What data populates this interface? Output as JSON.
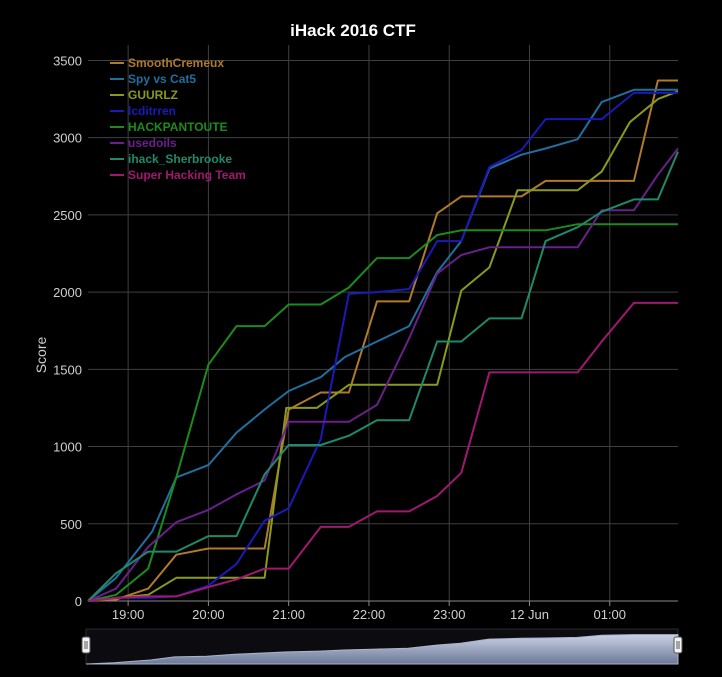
{
  "chart_data": {
    "type": "line",
    "title": "iHack 2016 CTF",
    "xlabel": "",
    "ylabel": "Score",
    "ylim": [
      0,
      3600
    ],
    "y_ticks": [
      0,
      500,
      1000,
      1500,
      2000,
      2500,
      3000,
      3500
    ],
    "x_range_hours": [
      18.5,
      25.85
    ],
    "x_ticks": [
      {
        "t": 19,
        "label": "19:00"
      },
      {
        "t": 20,
        "label": "20:00"
      },
      {
        "t": 21,
        "label": "21:00"
      },
      {
        "t": 22,
        "label": "22:00"
      },
      {
        "t": 23,
        "label": "23:00"
      },
      {
        "t": 24,
        "label": "12 Jun"
      },
      {
        "t": 25,
        "label": "01:00"
      }
    ],
    "grid": true,
    "legend_position": "top-left",
    "series": [
      {
        "name": "SmoothCremeux",
        "color": "#b07a2a",
        "points": [
          [
            18.5,
            0
          ],
          [
            18.85,
            10
          ],
          [
            19.25,
            80
          ],
          [
            19.6,
            300
          ],
          [
            20.0,
            340
          ],
          [
            20.7,
            340
          ],
          [
            21.0,
            1240
          ],
          [
            21.4,
            1350
          ],
          [
            21.75,
            1350
          ],
          [
            22.1,
            1940
          ],
          [
            22.5,
            1940
          ],
          [
            22.85,
            2510
          ],
          [
            23.15,
            2620
          ],
          [
            23.5,
            2620
          ],
          [
            23.9,
            2620
          ],
          [
            24.2,
            2720
          ],
          [
            24.6,
            2720
          ],
          [
            25.3,
            2720
          ],
          [
            25.6,
            3370
          ],
          [
            25.85,
            3370
          ]
        ]
      },
      {
        "name": "Spy vs Cat5",
        "color": "#1f6fa0",
        "points": [
          [
            18.5,
            0
          ],
          [
            18.85,
            150
          ],
          [
            19.3,
            450
          ],
          [
            19.6,
            800
          ],
          [
            20.0,
            880
          ],
          [
            20.35,
            1090
          ],
          [
            20.7,
            1240
          ],
          [
            21.0,
            1360
          ],
          [
            21.4,
            1450
          ],
          [
            21.7,
            1580
          ],
          [
            22.1,
            1680
          ],
          [
            22.5,
            1780
          ],
          [
            22.85,
            2130
          ],
          [
            23.15,
            2330
          ],
          [
            23.5,
            2800
          ],
          [
            23.9,
            2890
          ],
          [
            24.2,
            2930
          ],
          [
            24.6,
            2990
          ],
          [
            24.9,
            3230
          ],
          [
            25.3,
            3310
          ],
          [
            25.85,
            3310
          ]
        ]
      },
      {
        "name": "GUURLZ",
        "color": "#8a9a1c",
        "points": [
          [
            18.5,
            0
          ],
          [
            18.85,
            20
          ],
          [
            19.25,
            40
          ],
          [
            19.6,
            150
          ],
          [
            20.0,
            150
          ],
          [
            20.35,
            150
          ],
          [
            20.7,
            150
          ],
          [
            20.97,
            1250
          ],
          [
            21.35,
            1250
          ],
          [
            21.75,
            1400
          ],
          [
            22.1,
            1400
          ],
          [
            22.5,
            1400
          ],
          [
            22.85,
            1400
          ],
          [
            23.15,
            2010
          ],
          [
            23.5,
            2160
          ],
          [
            23.85,
            2660
          ],
          [
            24.2,
            2660
          ],
          [
            24.6,
            2660
          ],
          [
            24.9,
            2780
          ],
          [
            25.25,
            3100
          ],
          [
            25.6,
            3250
          ],
          [
            25.85,
            3300
          ]
        ]
      },
      {
        "name": "lcditrren",
        "color": "#1a1ab8",
        "points": [
          [
            18.5,
            0
          ],
          [
            18.85,
            20
          ],
          [
            19.25,
            20
          ],
          [
            19.6,
            30
          ],
          [
            20.0,
            100
          ],
          [
            20.35,
            240
          ],
          [
            20.7,
            520
          ],
          [
            21.0,
            600
          ],
          [
            21.4,
            1050
          ],
          [
            21.75,
            1990
          ],
          [
            22.1,
            2000
          ],
          [
            22.5,
            2020
          ],
          [
            22.85,
            2330
          ],
          [
            23.15,
            2330
          ],
          [
            23.5,
            2810
          ],
          [
            23.9,
            2920
          ],
          [
            24.2,
            3120
          ],
          [
            24.6,
            3120
          ],
          [
            24.9,
            3120
          ],
          [
            25.3,
            3290
          ],
          [
            25.85,
            3290
          ]
        ]
      },
      {
        "name": "HACKPANTOUTE",
        "color": "#1b8c1b",
        "points": [
          [
            18.5,
            0
          ],
          [
            18.85,
            40
          ],
          [
            19.25,
            210
          ],
          [
            19.6,
            800
          ],
          [
            20.0,
            1530
          ],
          [
            20.35,
            1780
          ],
          [
            20.7,
            1780
          ],
          [
            21.0,
            1920
          ],
          [
            21.4,
            1920
          ],
          [
            21.75,
            2030
          ],
          [
            22.1,
            2220
          ],
          [
            22.5,
            2220
          ],
          [
            22.85,
            2370
          ],
          [
            23.15,
            2400
          ],
          [
            23.5,
            2400
          ],
          [
            23.9,
            2400
          ],
          [
            24.2,
            2400
          ],
          [
            24.6,
            2440
          ],
          [
            24.9,
            2440
          ],
          [
            25.3,
            2440
          ],
          [
            25.85,
            2440
          ]
        ]
      },
      {
        "name": "usedoils",
        "color": "#6a1f8c",
        "points": [
          [
            18.5,
            0
          ],
          [
            18.85,
            80
          ],
          [
            19.25,
            350
          ],
          [
            19.6,
            510
          ],
          [
            20.0,
            590
          ],
          [
            20.35,
            690
          ],
          [
            20.7,
            780
          ],
          [
            21.0,
            1160
          ],
          [
            21.4,
            1160
          ],
          [
            21.75,
            1160
          ],
          [
            22.1,
            1270
          ],
          [
            22.5,
            1700
          ],
          [
            22.85,
            2120
          ],
          [
            23.15,
            2240
          ],
          [
            23.5,
            2290
          ],
          [
            23.9,
            2290
          ],
          [
            24.2,
            2290
          ],
          [
            24.6,
            2290
          ],
          [
            24.9,
            2530
          ],
          [
            25.3,
            2530
          ],
          [
            25.6,
            2760
          ],
          [
            25.85,
            2930
          ]
        ]
      },
      {
        "name": "ihack_Sherbrooke",
        "color": "#1f8a6a",
        "points": [
          [
            18.5,
            0
          ],
          [
            18.85,
            180
          ],
          [
            19.25,
            320
          ],
          [
            19.6,
            320
          ],
          [
            20.0,
            420
          ],
          [
            20.35,
            420
          ],
          [
            20.7,
            820
          ],
          [
            21.0,
            1010
          ],
          [
            21.4,
            1010
          ],
          [
            21.75,
            1070
          ],
          [
            22.1,
            1170
          ],
          [
            22.5,
            1170
          ],
          [
            22.85,
            1680
          ],
          [
            23.15,
            1680
          ],
          [
            23.5,
            1830
          ],
          [
            23.9,
            1830
          ],
          [
            24.2,
            2330
          ],
          [
            24.6,
            2420
          ],
          [
            24.9,
            2520
          ],
          [
            25.3,
            2600
          ],
          [
            25.6,
            2600
          ],
          [
            25.85,
            2910
          ]
        ]
      },
      {
        "name": "Super Hacking Team",
        "color": "#a01870",
        "points": [
          [
            18.5,
            0
          ],
          [
            18.85,
            20
          ],
          [
            19.25,
            30
          ],
          [
            19.6,
            30
          ],
          [
            20.0,
            90
          ],
          [
            20.35,
            140
          ],
          [
            20.7,
            210
          ],
          [
            21.0,
            210
          ],
          [
            21.4,
            480
          ],
          [
            21.75,
            480
          ],
          [
            22.1,
            580
          ],
          [
            22.5,
            580
          ],
          [
            22.85,
            680
          ],
          [
            23.15,
            830
          ],
          [
            23.5,
            1480
          ],
          [
            23.9,
            1480
          ],
          [
            24.2,
            1480
          ],
          [
            24.6,
            1480
          ],
          [
            24.9,
            1680
          ],
          [
            25.3,
            1930
          ],
          [
            25.85,
            1930
          ]
        ]
      }
    ]
  },
  "navigator": {
    "range_handles": [
      "start",
      "end"
    ],
    "overview_area_color": "#c9d2e6"
  }
}
